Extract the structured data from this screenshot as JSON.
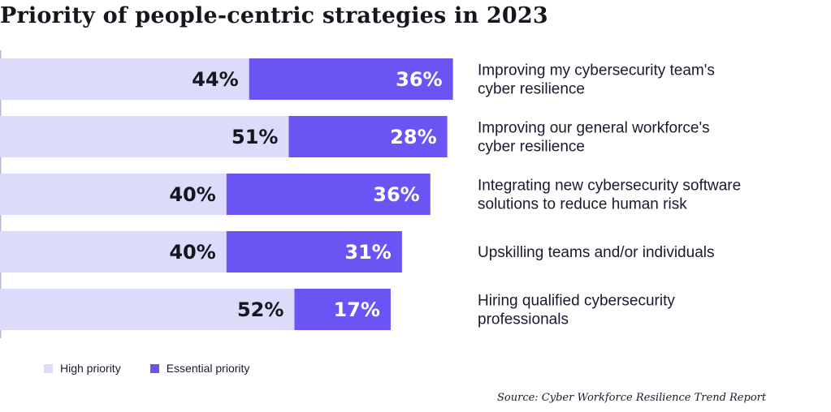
{
  "chart_data": {
    "type": "bar",
    "orientation": "horizontal",
    "stacked": true,
    "title": "Priority of people-centric strategies in 2023",
    "categories": [
      "Improving my cybersecurity team's cyber resilience",
      "Improving our general workforce's cyber resilience",
      "Integrating new cybersecurity software solutions to reduce human risk",
      "Upskilling teams and/or individuals",
      "Hiring qualified cybersecurity professionals"
    ],
    "series": [
      {
        "name": "High priority",
        "values": [
          44,
          51,
          40,
          40,
          52
        ],
        "labels": [
          "44%",
          "51%",
          "40%",
          "40%",
          "52%"
        ],
        "color": "#dddbfa"
      },
      {
        "name": "Essential priority",
        "values": [
          36,
          28,
          36,
          31,
          17
        ],
        "labels": [
          "36%",
          "28%",
          "36%",
          "31%",
          "17%"
        ],
        "color": "#6a55f4"
      }
    ],
    "xlim": [
      0,
      100
    ],
    "unit": "%",
    "grid": false,
    "legend": "bottom-left",
    "source": "Source: Cyber Workforce Resilience Trend Report"
  }
}
